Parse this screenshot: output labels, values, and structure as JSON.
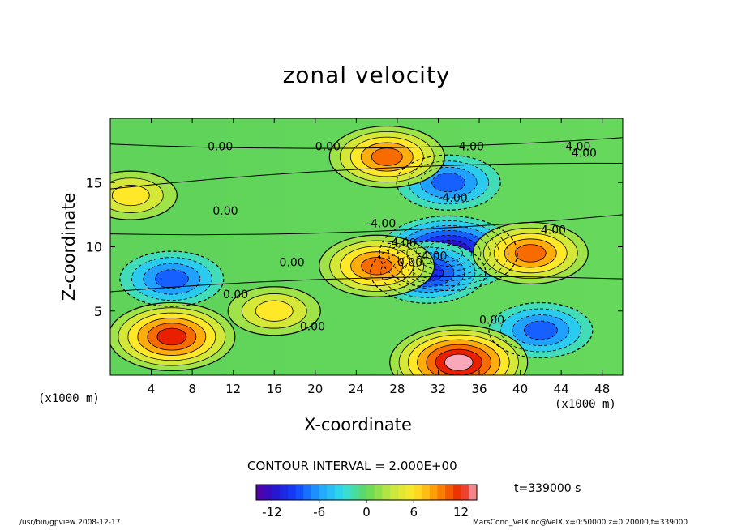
{
  "chart_data": {
    "type": "heatmap",
    "title": "zonal velocity",
    "xlabel": "X-coordinate",
    "ylabel": "Z-coordinate",
    "x_unit_label": "(x1000 m)",
    "xlim": [
      0,
      50
    ],
    "ylim": [
      0,
      20
    ],
    "x_ticks": [
      4,
      8,
      12,
      16,
      20,
      24,
      28,
      32,
      36,
      40,
      44,
      48
    ],
    "y_ticks": [
      5,
      10,
      15
    ],
    "contour_interval_text": "CONTOUR INTERVAL = 2.000E+00",
    "contour_labels": [
      "0.00",
      "0.00",
      "0.00",
      "0.00",
      "0.00",
      "0.00",
      "0.00",
      "0.00",
      "-4.00",
      "-4.00",
      "-4.00",
      "-4.00",
      "-4.00",
      "4.00",
      "4.00",
      "4.00"
    ],
    "colorbar": {
      "min": -14,
      "max": 14,
      "tick_values": [
        -12,
        -6,
        0,
        6,
        12
      ],
      "tick_labels": [
        "-12",
        "-6",
        "0",
        "6",
        "12"
      ]
    },
    "features": [
      {
        "x": 33,
        "z": 9.5,
        "value": -14
      },
      {
        "x": 31,
        "z": 8,
        "value": -9
      },
      {
        "x": 33,
        "z": 15,
        "value": -8
      },
      {
        "x": 6,
        "z": 7.5,
        "value": -8
      },
      {
        "x": 42,
        "z": 3.5,
        "value": -7
      },
      {
        "x": 6,
        "z": 3,
        "value": 12
      },
      {
        "x": 34,
        "z": 1,
        "value": 14
      },
      {
        "x": 41,
        "z": 9.5,
        "value": 10
      },
      {
        "x": 26,
        "z": 8.5,
        "value": 9
      },
      {
        "x": 27,
        "z": 17,
        "value": 9
      },
      {
        "x": 2,
        "z": 14,
        "value": 6
      },
      {
        "x": 16,
        "z": 5,
        "value": 5
      }
    ]
  },
  "annotations": {
    "time": "t=339000 s",
    "footer_left": "/usr/bin/gpview   2008-12-17",
    "footer_right": "MarsCond_VelX.nc@VelX,x=0:50000,z=0:20000,t=339000"
  }
}
